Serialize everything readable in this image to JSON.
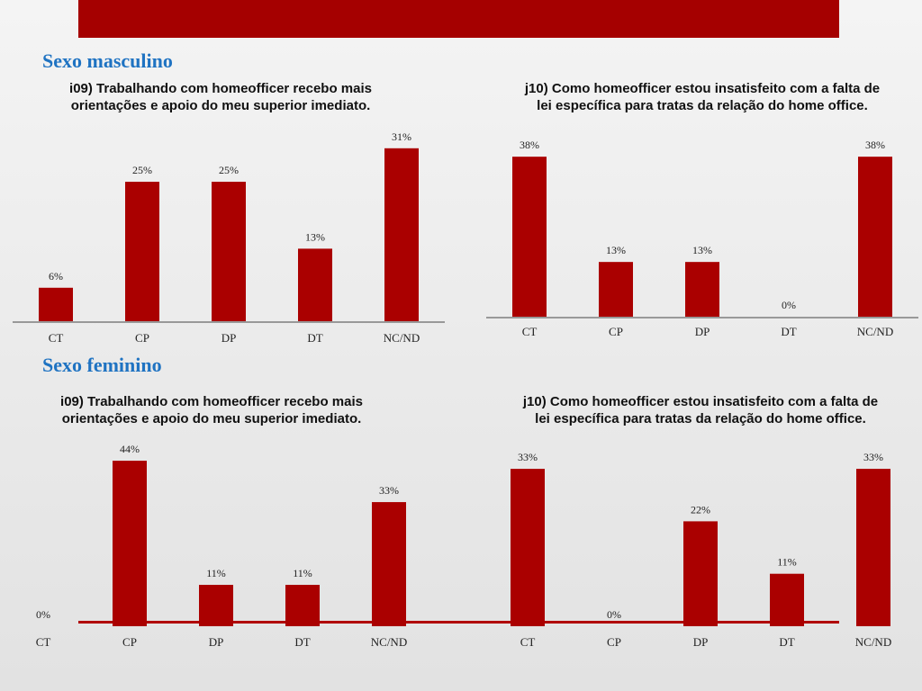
{
  "colors": {
    "bar": "#aa0000",
    "banner": "#a50000",
    "title": "#1f73c2",
    "axis": "#999999"
  },
  "sections": [
    {
      "title": "Sexo masculino"
    },
    {
      "title": "Sexo feminino"
    }
  ],
  "chart_data": [
    {
      "type": "bar",
      "title": "i09) Trabalhando com homeofficer recebo mais orientações e apoio do meu superior imediato.",
      "categories": [
        "CT",
        "CP",
        "DP",
        "DT",
        "NC/ND"
      ],
      "values": [
        6,
        25,
        25,
        13,
        31
      ],
      "labels": [
        "6%",
        "25%",
        "25%",
        "13%",
        "31%"
      ],
      "xlabel": "",
      "ylabel": "",
      "grid": false
    },
    {
      "type": "bar",
      "title": "j10) Como homeofficer estou insatisfeito com a falta de lei específica para tratas da relação do home office.",
      "categories": [
        "CT",
        "CP",
        "DP",
        "DT",
        "NC/ND"
      ],
      "values": [
        38,
        13,
        13,
        0,
        38
      ],
      "labels": [
        "38%",
        "13%",
        "13%",
        "0%",
        "38%"
      ],
      "xlabel": "",
      "ylabel": "",
      "grid": false
    },
    {
      "type": "bar",
      "title": "i09) Trabalhando com homeofficer recebo mais orientações e apoio do meu superior imediato.",
      "categories": [
        "CT",
        "CP",
        "DP",
        "DT",
        "NC/ND"
      ],
      "values": [
        0,
        44,
        11,
        11,
        33
      ],
      "labels": [
        "0%",
        "44%",
        "11%",
        "11%",
        "33%"
      ],
      "xlabel": "",
      "ylabel": "",
      "grid": false
    },
    {
      "type": "bar",
      "title": "j10) Como homeofficer estou insatisfeito com a falta de lei específica para tratas da relação do home office.",
      "categories": [
        "CT",
        "CP",
        "DP",
        "DT",
        "NC/ND"
      ],
      "values": [
        33,
        0,
        22,
        11,
        33
      ],
      "labels": [
        "33%",
        "0%",
        "22%",
        "11%",
        "33%"
      ],
      "xlabel": "",
      "ylabel": "",
      "grid": false
    }
  ]
}
